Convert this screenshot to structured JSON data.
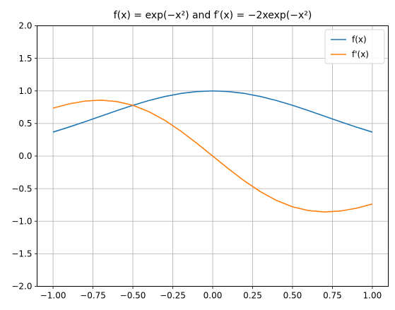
{
  "chart_data": {
    "type": "line",
    "title": "f(x) = exp(−x²) and f′(x) = −2xexp(−x²)",
    "xlabel": "",
    "ylabel": "",
    "xlim": [
      -1.1,
      1.1
    ],
    "ylim": [
      -2.0,
      2.0
    ],
    "grid": true,
    "legend_position": "top-right",
    "x_ticks": [
      "−1.00",
      "−0.75",
      "−0.50",
      "−0.25",
      "0.00",
      "0.25",
      "0.50",
      "0.75",
      "1.00"
    ],
    "x_tick_values": [
      -1.0,
      -0.75,
      -0.5,
      -0.25,
      0.0,
      0.25,
      0.5,
      0.75,
      1.0
    ],
    "y_ticks": [
      "−2.0",
      "−1.5",
      "−1.0",
      "−0.5",
      "0.0",
      "0.5",
      "1.0",
      "1.5",
      "2.0"
    ],
    "y_tick_values": [
      -2.0,
      -1.5,
      -1.0,
      -0.5,
      0.0,
      0.5,
      1.0,
      1.5,
      2.0
    ],
    "x": [
      -1.0,
      -0.9,
      -0.8,
      -0.7,
      -0.6,
      -0.5,
      -0.4,
      -0.3,
      -0.2,
      -0.1,
      0.0,
      0.1,
      0.2,
      0.3,
      0.4,
      0.5,
      0.6,
      0.7,
      0.8,
      0.9,
      1.0
    ],
    "series": [
      {
        "name": "f(x)",
        "color": "#1f77b4",
        "values": [
          0.368,
          0.445,
          0.527,
          0.613,
          0.698,
          0.779,
          0.852,
          0.914,
          0.961,
          0.99,
          1.0,
          0.99,
          0.961,
          0.914,
          0.852,
          0.779,
          0.698,
          0.613,
          0.527,
          0.445,
          0.368
        ]
      },
      {
        "name": "f'(x)",
        "color": "#ff7f0e",
        "values": [
          0.736,
          0.801,
          0.844,
          0.858,
          0.837,
          0.779,
          0.682,
          0.548,
          0.384,
          0.198,
          0.0,
          -0.198,
          -0.384,
          -0.548,
          -0.682,
          -0.779,
          -0.837,
          -0.858,
          -0.844,
          -0.801,
          -0.736
        ]
      }
    ]
  }
}
